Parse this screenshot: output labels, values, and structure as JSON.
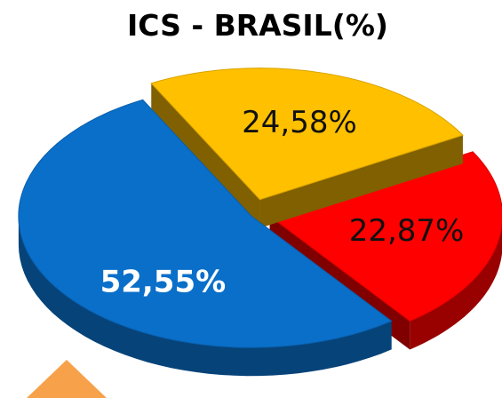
{
  "chart_data": {
    "type": "pie3d",
    "title": "ICS - BRASIL(%)",
    "values": [
      52.55,
      24.58,
      22.87
    ],
    "value_labels": [
      "52,55%",
      "24,58%",
      "22,87%"
    ],
    "colors": [
      "#0a6fc9",
      "#ffc000",
      "#ff0000"
    ],
    "label_colors": [
      "#ffffff",
      "#111111",
      "#111111"
    ]
  }
}
